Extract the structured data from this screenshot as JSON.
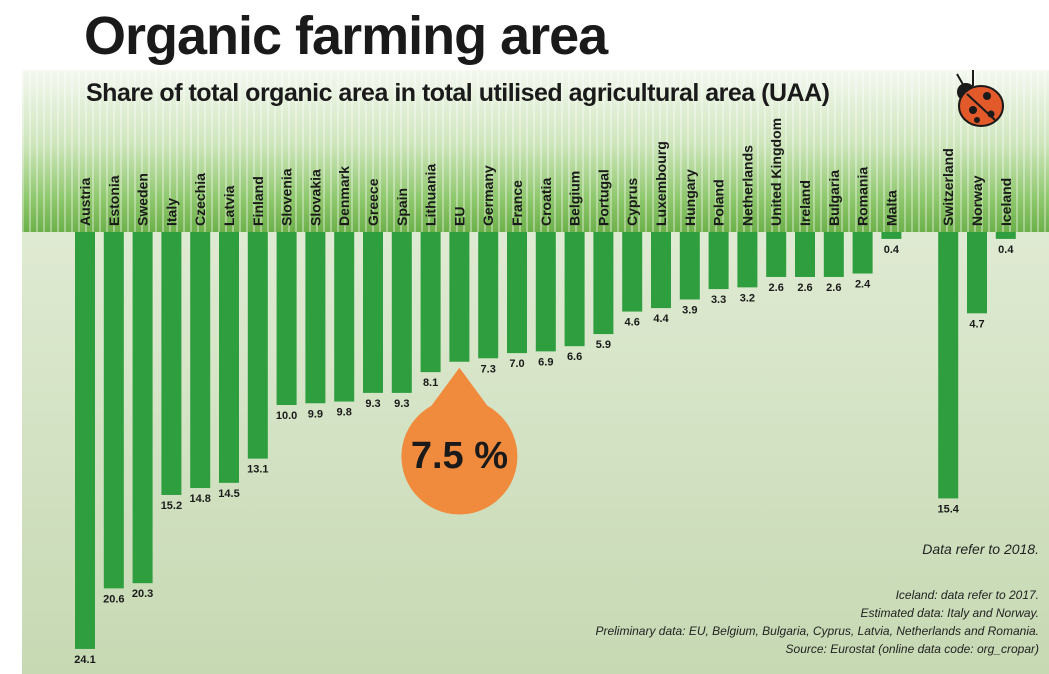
{
  "title": "Organic farming area",
  "subtitle": "Share of total organic area in total utilised agricultural area (UAA)",
  "chart_data": {
    "type": "bar",
    "orientation": "vertical-downward",
    "categories": [
      "Austria",
      "Estonia",
      "Sweden",
      "Italy",
      "Czechia",
      "Latvia",
      "Finland",
      "Slovenia",
      "Slovakia",
      "Denmark",
      "Greece",
      "Spain",
      "Lithuania",
      "EU",
      "Germany",
      "France",
      "Croatia",
      "Belgium",
      "Portugal",
      "Cyprus",
      "Luxembourg",
      "Hungary",
      "Poland",
      "Netherlands",
      "United Kingdom",
      "Ireland",
      "Bulgaria",
      "Romania",
      "Malta",
      "Switzerland",
      "Norway",
      "Iceland"
    ],
    "values": [
      24.1,
      20.6,
      20.3,
      15.2,
      14.8,
      14.5,
      13.1,
      10.0,
      9.9,
      9.8,
      9.3,
      9.3,
      8.1,
      7.5,
      7.3,
      7.0,
      6.9,
      6.6,
      5.9,
      4.6,
      4.4,
      3.9,
      3.3,
      3.2,
      2.6,
      2.6,
      2.6,
      2.4,
      0.4,
      15.4,
      4.7,
      0.4
    ],
    "value_labels": [
      "24.1",
      "20.6",
      "20.3",
      "15.2",
      "14.8",
      "14.5",
      "13.1",
      "10.0",
      "9.9",
      "9.8",
      "9.3",
      "9.3",
      "8.1",
      "",
      "7.3",
      "7.0",
      "6.9",
      "6.6",
      "5.9",
      "4.6",
      "4.4",
      "3.9",
      "3.3",
      "3.2",
      "2.6",
      "2.6",
      "2.6",
      "2.4",
      "0.4",
      "15.4",
      "4.7",
      "0.4"
    ],
    "highlight": {
      "category": "EU",
      "label": "7.5 %",
      "color": "#f08a3c"
    },
    "bar_color": "#2e9e3f",
    "ylim": [
      0,
      25
    ]
  },
  "notes": {
    "reference": "Data refer to 2018.",
    "lines": [
      "Iceland: data refer to 2017.",
      "Estimated data:  Italy and Norway.",
      "Preliminary data: EU, Belgium, Bulgaria, Cyprus, Latvia, Netherlands and Romania.",
      "Source: Eurostat (online data code: org_cropar)"
    ]
  },
  "icons": {
    "mascot": "ladybug-icon"
  }
}
